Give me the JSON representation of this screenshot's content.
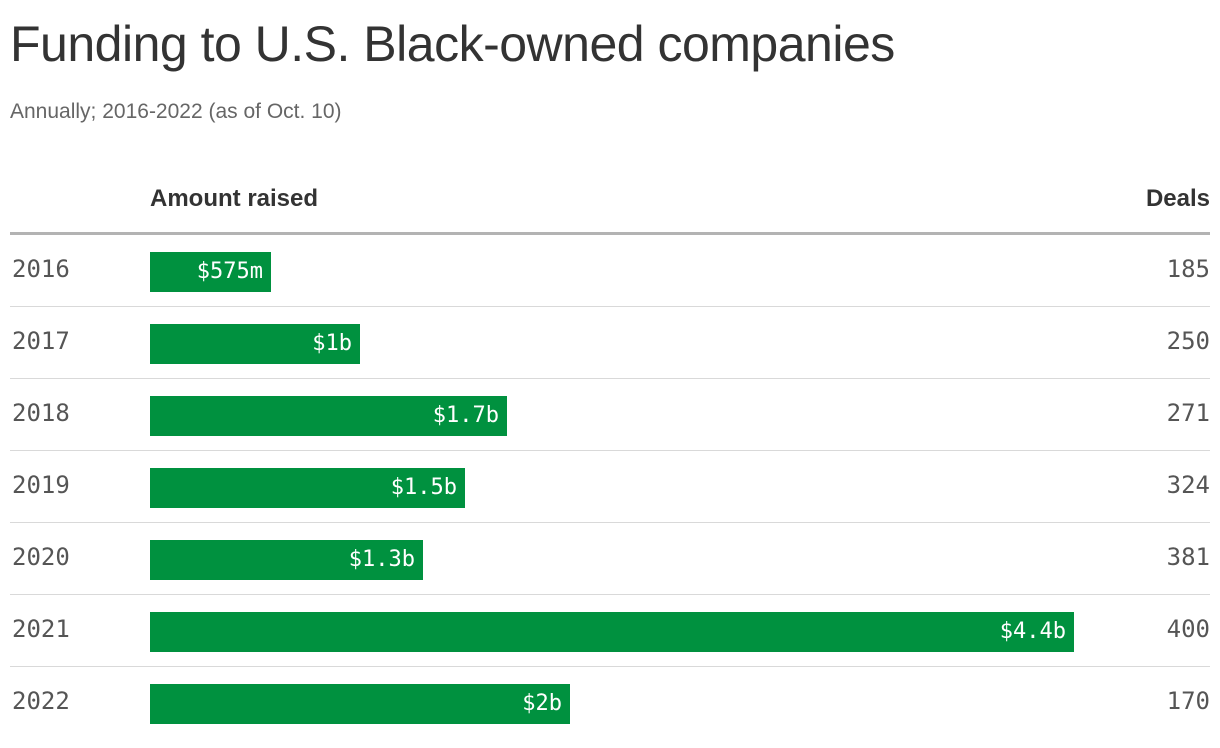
{
  "chart_data": {
    "type": "bar",
    "orientation": "horizontal",
    "title": "Funding to U.S. Black-owned companies",
    "subtitle": "Annually; 2016-2022 (as of Oct. 10)",
    "column_headers": {
      "amount": "Amount raised",
      "deals": "Deals"
    },
    "categories": [
      "2016",
      "2017",
      "2018",
      "2019",
      "2020",
      "2021",
      "2022"
    ],
    "series": [
      {
        "name": "Amount raised",
        "unit": "billions USD",
        "values": [
          0.575,
          1.0,
          1.7,
          1.5,
          1.3,
          4.4,
          2.0
        ],
        "labels": [
          "$575m",
          "$1b",
          "$1.7b",
          "$1.5b",
          "$1.3b",
          "$4.4b",
          "$2b"
        ]
      },
      {
        "name": "Deals",
        "values": [
          185,
          250,
          271,
          324,
          381,
          400,
          170
        ]
      }
    ],
    "xlim": [
      0,
      4.4
    ],
    "grid": false,
    "bar_color": "#00913f"
  }
}
